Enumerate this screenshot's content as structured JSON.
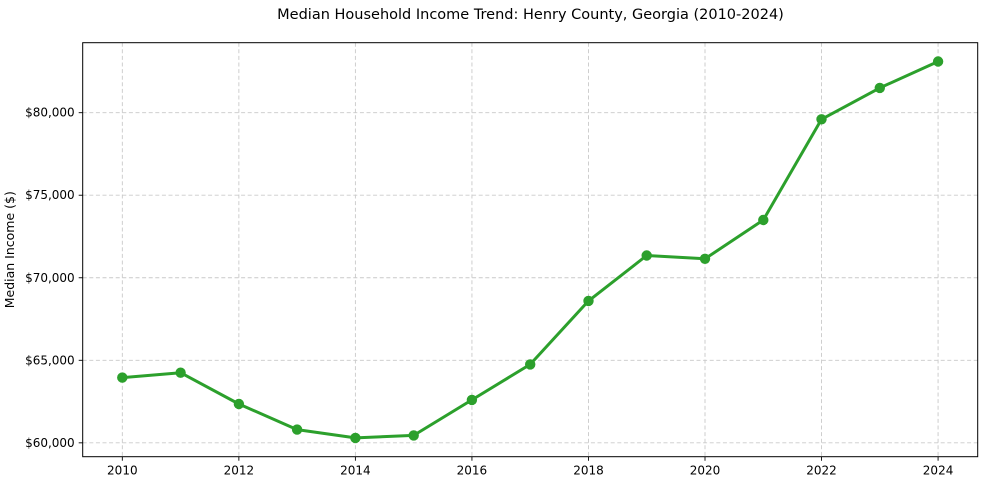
{
  "chart_data": {
    "type": "line",
    "title": "Median Household Income Trend: Henry County, Georgia (2010-2024)",
    "xlabel": "",
    "ylabel": "Median Income ($)",
    "x": [
      2010,
      2011,
      2012,
      2013,
      2014,
      2015,
      2016,
      2017,
      2018,
      2019,
      2020,
      2021,
      2022,
      2023,
      2024
    ],
    "values": [
      63950,
      64250,
      62350,
      60800,
      60300,
      60450,
      62600,
      64750,
      68600,
      71350,
      71150,
      73500,
      79600,
      81500,
      83100
    ],
    "series_name": "Median Household Income",
    "xlim": [
      2009.32,
      2024.68
    ],
    "ylim": [
      59160,
      84240
    ],
    "x_ticks": [
      2010,
      2012,
      2014,
      2016,
      2018,
      2020,
      2022,
      2024
    ],
    "x_tick_labels": [
      "2010",
      "2012",
      "2014",
      "2016",
      "2018",
      "2020",
      "2022",
      "2024"
    ],
    "y_ticks": [
      60000,
      65000,
      70000,
      75000,
      80000
    ],
    "y_tick_labels": [
      "$60,000",
      "$65,000",
      "$70,000",
      "$75,000",
      "$80,000"
    ],
    "grid": true,
    "legend": "none",
    "line_color": "#2ca02c",
    "marker_color": "#2ca02c",
    "grid_color": "#c9c9c9",
    "spine_color": "#000000",
    "background_color": "#ffffff"
  }
}
